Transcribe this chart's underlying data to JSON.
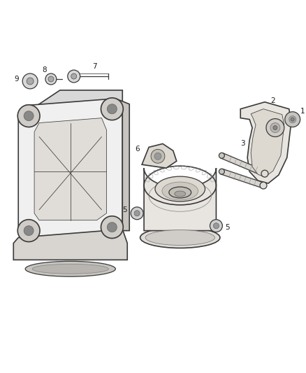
{
  "background_color": "#ffffff",
  "line_color": "#3a3a3a",
  "label_color": "#1a1a1a",
  "figsize": [
    4.38,
    5.33
  ],
  "dpi": 100,
  "label_fontsize": 7.5,
  "lw_main": 0.9,
  "lw_thin": 0.55,
  "lw_thick": 1.2
}
